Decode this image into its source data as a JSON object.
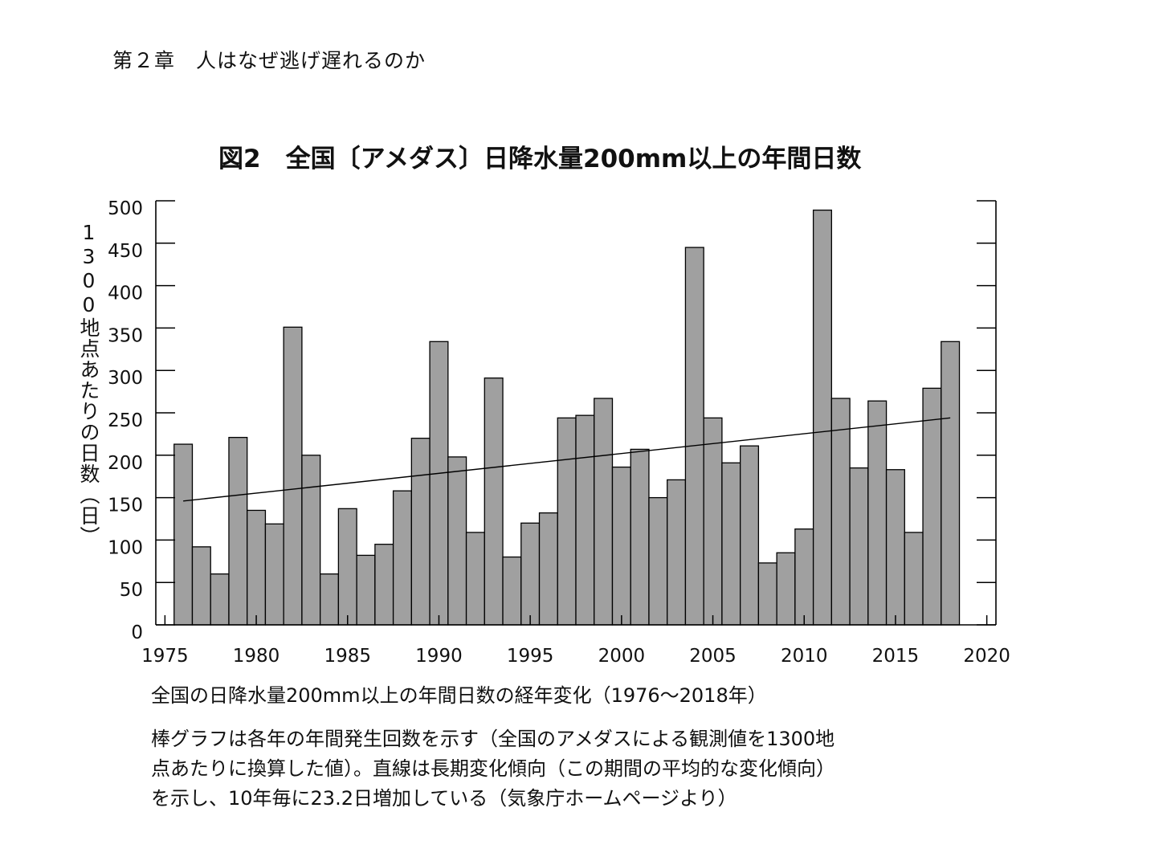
{
  "header": {
    "chapter": "第２章　人はなぜ逃げ遅れるのか"
  },
  "figure": {
    "title": "図2　全国〔アメダス〕日降水量200mm以上の年間日数",
    "caption": "全国の日降水量200mm以上の年間日数の経年変化（1976～2018年）",
    "description_lines": [
      "棒グラフは各年の年間発生回数を示す（全国のアメダスによる観測値を1300地",
      "点あたりに換算した値）。直線は長期変化傾向（この期間の平均的な変化傾向）",
      "を示し、10年毎に23.2日増加している（気象庁ホームページより）"
    ]
  },
  "chart_data": {
    "type": "bar",
    "title": "図2　全国〔アメダス〕日降水量200mm以上の年間日数",
    "xlabel": "",
    "ylabel": "1300地点あたりの日数（日）",
    "x": [
      1976,
      1977,
      1978,
      1979,
      1980,
      1981,
      1982,
      1983,
      1984,
      1985,
      1986,
      1987,
      1988,
      1989,
      1990,
      1991,
      1992,
      1993,
      1994,
      1995,
      1996,
      1997,
      1998,
      1999,
      2000,
      2001,
      2002,
      2003,
      2004,
      2005,
      2006,
      2007,
      2008,
      2009,
      2010,
      2011,
      2012,
      2013,
      2014,
      2015,
      2016,
      2017,
      2018
    ],
    "values": [
      213,
      92,
      60,
      221,
      135,
      119,
      351,
      200,
      60,
      137,
      82,
      95,
      158,
      220,
      334,
      198,
      109,
      291,
      80,
      120,
      132,
      244,
      247,
      267,
      186,
      207,
      150,
      171,
      445,
      244,
      191,
      211,
      73,
      85,
      113,
      489,
      267,
      185,
      264,
      183,
      109,
      279,
      334
    ],
    "xlim": [
      1974.5,
      2020.5
    ],
    "ylim": [
      0,
      500
    ],
    "xticks": [
      1975,
      1980,
      1985,
      1990,
      1995,
      2000,
      2005,
      2010,
      2015,
      2020
    ],
    "yticks": [
      0,
      50,
      100,
      150,
      200,
      250,
      300,
      350,
      400,
      450,
      500
    ],
    "trend": {
      "x": [
        1976,
        2018
      ],
      "y": [
        146,
        244
      ],
      "rate_per_decade": 23.2
    },
    "colors": {
      "bar_fill": "#a0a0a0",
      "bar_stroke": "#000000",
      "axis": "#000000",
      "trend": "#000000"
    },
    "grid": false
  }
}
